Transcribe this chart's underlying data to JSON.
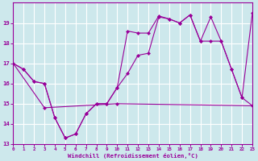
{
  "background_color": "#cde8ec",
  "grid_color": "#ffffff",
  "line_color": "#990099",
  "xlabel": "Windchill (Refroidissement éolien,°C)",
  "ylim": [
    13,
    20
  ],
  "xlim": [
    0,
    23
  ],
  "yticks": [
    13,
    14,
    15,
    16,
    17,
    18,
    19
  ],
  "xticks": [
    0,
    1,
    2,
    3,
    4,
    5,
    6,
    7,
    8,
    9,
    10,
    11,
    12,
    13,
    14,
    15,
    16,
    17,
    18,
    19,
    20,
    21,
    22,
    23
  ],
  "series1_x": [
    0,
    1,
    2,
    3,
    4,
    5,
    6,
    7,
    8,
    9,
    10,
    11,
    12,
    13,
    14,
    15,
    16,
    17,
    18,
    19,
    20,
    21,
    22,
    23
  ],
  "series1_y": [
    17.0,
    16.7,
    16.1,
    16.0,
    14.3,
    13.3,
    13.5,
    14.5,
    15.0,
    15.0,
    15.8,
    18.6,
    18.5,
    18.5,
    19.35,
    19.2,
    19.0,
    19.4,
    18.1,
    19.3,
    18.1,
    16.7,
    15.3,
    19.5
  ],
  "series2_x": [
    0,
    1,
    2,
    3,
    4,
    5,
    6,
    7,
    8,
    9,
    10,
    11,
    12,
    13,
    14,
    15,
    16,
    17,
    18,
    19,
    20,
    21,
    22,
    23
  ],
  "series2_y": [
    17.0,
    16.7,
    16.1,
    16.0,
    14.3,
    13.3,
    13.5,
    14.5,
    15.0,
    15.0,
    15.8,
    16.5,
    17.4,
    17.5,
    19.3,
    19.2,
    19.0,
    19.4,
    18.1,
    18.1,
    18.1,
    16.7,
    15.3,
    14.9
  ],
  "series3_x": [
    0,
    3,
    10,
    23
  ],
  "series3_y": [
    17.0,
    14.8,
    15.0,
    14.9
  ]
}
